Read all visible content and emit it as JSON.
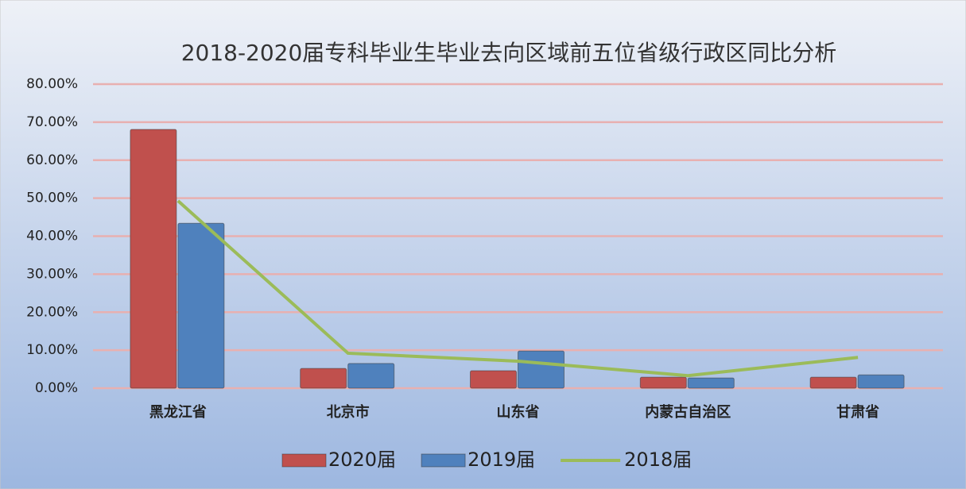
{
  "chart_data": {
    "type": "bar",
    "title": "2018-2020届专科毕业生毕业去向区域前五位省级行政区同比分析",
    "categories": [
      "黑龙江省",
      "北京市",
      "山东省",
      "内蒙古自治区",
      "甘肃省"
    ],
    "series": [
      {
        "name": "2020届",
        "color": "#c0504d",
        "values": [
          68.1,
          5.2,
          4.6,
          2.9,
          2.9
        ]
      },
      {
        "name": "2019届",
        "color": "#4f81bd",
        "values": [
          43.4,
          6.5,
          9.8,
          2.7,
          3.5
        ]
      },
      {
        "name": "2018届",
        "color": "#9bbb59",
        "type": "line",
        "values": [
          49.3,
          9.2,
          7.1,
          3.3,
          8.1
        ]
      }
    ],
    "ylim": [
      0,
      80
    ],
    "yticks": [
      {
        "value": 0,
        "label": "0.00%"
      },
      {
        "value": 10,
        "label": "10.00%"
      },
      {
        "value": 20,
        "label": "20.00%"
      },
      {
        "value": 30,
        "label": "30.00%"
      },
      {
        "value": 40,
        "label": "40.00%"
      },
      {
        "value": 50,
        "label": "50.00%"
      },
      {
        "value": 60,
        "label": "60.00%"
      },
      {
        "value": 70,
        "label": "70.00%"
      },
      {
        "value": 80,
        "label": "80.00%"
      }
    ],
    "grid": true,
    "legend": "bottom"
  }
}
